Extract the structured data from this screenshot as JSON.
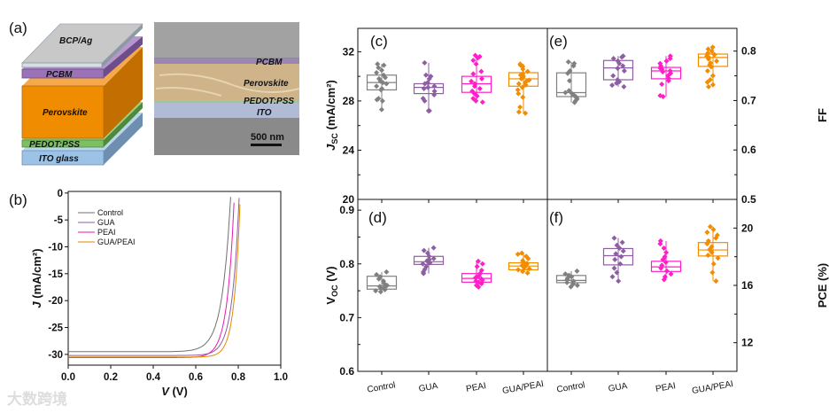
{
  "device_schematic": {
    "panel": "(a)",
    "layers": [
      "BCP/Ag",
      "PCBM",
      "Perovskite",
      "PEDOT:PSS",
      "ITO glass"
    ],
    "layer_colors": [
      "#c8c8c8",
      "#9b72b8",
      "#f08c00",
      "#7cc060",
      "#9cc3e6"
    ],
    "sem_labels": [
      "PCBM",
      "Perovskite",
      "PEDOT:PSS",
      "ITO"
    ],
    "scale_bar": "500 nm"
  },
  "watermark": "大数跨境",
  "chart_data": [
    {
      "panel": "(b)",
      "type": "line",
      "xlabel": {
        "sym": "V",
        "unit": " (V)"
      },
      "ylabel": {
        "sym": "J",
        "unit": " (mA/cm²)"
      },
      "xlim": [
        0,
        1.0
      ],
      "ylim": [
        -32,
        0.3
      ],
      "xticks": [
        "0.0",
        "0.2",
        "0.4",
        "0.6",
        "0.8",
        "1.0"
      ],
      "yticks": [
        0,
        -5,
        -10,
        -15,
        -20,
        -25,
        -30
      ],
      "legend_position": "top-left",
      "series": [
        {
          "name": "Control",
          "color": "#707070",
          "jsc": 29.5,
          "voc": 0.765,
          "n_vt": 0.04
        },
        {
          "name": "GUA",
          "color": "#8e5ea2",
          "jsc": 30.2,
          "voc": 0.805,
          "n_vt": 0.033
        },
        {
          "name": "PEAI",
          "color": "#e619b4",
          "jsc": 30.6,
          "voc": 0.782,
          "n_vt": 0.033
        },
        {
          "name": "GUA/PEAI",
          "color": "#e08a00",
          "jsc": 30.5,
          "voc": 0.81,
          "n_vt": 0.028
        }
      ]
    },
    {
      "panel": "(c)",
      "type": "box",
      "ylabel": {
        "sym": "J",
        "sub": "SC",
        "unit": " (mA/cm²)"
      },
      "ylim": [
        20,
        33.9
      ],
      "yticks": [
        20,
        24,
        28,
        32
      ],
      "axis_side": "left",
      "categories": [
        "Control",
        "GUA",
        "PEAI",
        "GUA/PEAI"
      ],
      "colors": [
        "#808080",
        "#8e5ea2",
        "#ff1fc8",
        "#f28c00"
      ],
      "boxes": [
        [
          28.9,
          29.5,
          30.1
        ],
        [
          28.6,
          29.1,
          29.4
        ],
        [
          28.7,
          29.4,
          30.0
        ],
        [
          29.2,
          29.8,
          30.3
        ]
      ],
      "points": [
        [
          27.3,
          28.0,
          28.1,
          28.2,
          28.9,
          29.0,
          29.2,
          29.4,
          29.5,
          29.6,
          29.8,
          29.9,
          30.1,
          30.3,
          30.5,
          30.7,
          30.9,
          31.0
        ],
        [
          27.2,
          27.2,
          28.0,
          28.2,
          28.5,
          28.8,
          29.0,
          29.1,
          29.2,
          29.4,
          29.5,
          29.8,
          30.0,
          30.1,
          31.1
        ],
        [
          27.9,
          28.0,
          28.2,
          28.4,
          28.6,
          28.8,
          29.0,
          29.2,
          29.4,
          29.6,
          29.8,
          30.2,
          30.4,
          31.0,
          31.3,
          31.5,
          31.7,
          31.6
        ],
        [
          27.0,
          27.1,
          27.5,
          28.3,
          28.6,
          28.9,
          29.1,
          29.3,
          29.5,
          29.7,
          29.8,
          29.9,
          30.0,
          30.2,
          30.4,
          30.6,
          30.8,
          30.9,
          31.0,
          29.6,
          29.4,
          30.1
        ]
      ]
    },
    {
      "panel": "(e)",
      "type": "box",
      "ylabel": {
        "sym": "FF",
        "sub": "",
        "unit": ""
      },
      "ylim": [
        0.5,
        0.846
      ],
      "yticks": [
        0.5,
        0.6,
        0.7,
        0.8
      ],
      "axis_side": "right",
      "categories": [
        "Control",
        "GUA",
        "PEAI",
        "GUA/PEAI"
      ],
      "colors": [
        "#808080",
        "#8e5ea2",
        "#ff1fc8",
        "#f28c00"
      ],
      "boxes": [
        [
          0.708,
          0.716,
          0.756
        ],
        [
          0.742,
          0.766,
          0.781
        ],
        [
          0.744,
          0.76,
          0.767
        ],
        [
          0.769,
          0.787,
          0.794
        ]
      ],
      "points": [
        [
          0.696,
          0.7,
          0.703,
          0.706,
          0.708,
          0.71,
          0.712,
          0.714,
          0.716,
          0.72,
          0.74,
          0.755,
          0.76,
          0.77,
          0.775,
          0.778
        ],
        [
          0.728,
          0.731,
          0.735,
          0.738,
          0.742,
          0.75,
          0.76,
          0.765,
          0.77,
          0.775,
          0.78,
          0.785,
          0.788,
          0.79
        ],
        [
          0.708,
          0.71,
          0.733,
          0.74,
          0.745,
          0.75,
          0.755,
          0.758,
          0.76,
          0.763,
          0.765,
          0.77,
          0.775,
          0.78,
          0.785,
          0.79
        ],
        [
          0.728,
          0.732,
          0.737,
          0.742,
          0.75,
          0.76,
          0.768,
          0.772,
          0.776,
          0.78,
          0.784,
          0.787,
          0.79,
          0.793,
          0.796,
          0.8,
          0.804,
          0.808
        ]
      ]
    },
    {
      "panel": "(d)",
      "type": "box",
      "ylabel": {
        "sym": "V",
        "sub": "OC",
        "unit": " (V)"
      },
      "ylim": [
        0.6,
        0.92
      ],
      "yticks": [
        0.6,
        0.7,
        0.8,
        0.9
      ],
      "axis_side": "left",
      "categories": [
        "Control",
        "GUA",
        "PEAI",
        "GUA/PEAI"
      ],
      "colors": [
        "#808080",
        "#8e5ea2",
        "#ff1fc8",
        "#f28c00"
      ],
      "boxes": [
        [
          0.753,
          0.759,
          0.777
        ],
        [
          0.799,
          0.804,
          0.814
        ],
        [
          0.766,
          0.773,
          0.782
        ],
        [
          0.789,
          0.796,
          0.802
        ]
      ],
      "points": [
        [
          0.748,
          0.75,
          0.752,
          0.754,
          0.756,
          0.758,
          0.76,
          0.763,
          0.768,
          0.772,
          0.776,
          0.78,
          0.785
        ],
        [
          0.782,
          0.785,
          0.79,
          0.795,
          0.8,
          0.802,
          0.804,
          0.806,
          0.808,
          0.81,
          0.814,
          0.82,
          0.825,
          0.83
        ],
        [
          0.757,
          0.76,
          0.763,
          0.766,
          0.768,
          0.77,
          0.772,
          0.774,
          0.776,
          0.778,
          0.782,
          0.788,
          0.795,
          0.8,
          0.805
        ],
        [
          0.783,
          0.786,
          0.789,
          0.791,
          0.793,
          0.795,
          0.797,
          0.799,
          0.801,
          0.803,
          0.806,
          0.81,
          0.814,
          0.818,
          0.82
        ]
      ]
    },
    {
      "panel": "(f)",
      "type": "box",
      "ylabel": {
        "sym": "PCE",
        "sub": "",
        "unit": " (%)"
      },
      "ylim": [
        10,
        22
      ],
      "yticks": [
        12,
        16,
        20
      ],
      "axis_side": "right",
      "categories": [
        "Control",
        "GUA",
        "PEAI",
        "GUA/PEAI"
      ],
      "colors": [
        "#808080",
        "#8e5ea2",
        "#ff1fc8",
        "#f28c00"
      ],
      "boxes": [
        [
          16.19,
          16.35,
          16.69
        ],
        [
          17.43,
          18.07,
          18.57
        ],
        [
          16.97,
          17.29,
          17.68
        ],
        [
          18.05,
          18.47,
          18.99
        ]
      ],
      "points": [
        [
          15.9,
          16.0,
          16.1,
          16.2,
          16.3,
          16.4,
          16.5,
          16.6,
          16.7,
          16.8,
          17.0
        ],
        [
          16.3,
          16.6,
          16.9,
          17.2,
          17.5,
          17.8,
          18.0,
          18.2,
          18.4,
          18.6,
          18.8,
          19.0,
          19.3
        ],
        [
          16.4,
          16.6,
          16.8,
          17.0,
          17.2,
          17.4,
          17.6,
          17.8,
          18.0,
          18.3,
          18.6,
          18.9,
          19.1
        ],
        [
          16.3,
          16.9,
          17.5,
          17.9,
          18.1,
          18.3,
          18.5,
          18.7,
          18.9,
          19.1,
          19.3,
          19.5,
          19.7,
          19.9,
          20.1
        ]
      ]
    }
  ]
}
